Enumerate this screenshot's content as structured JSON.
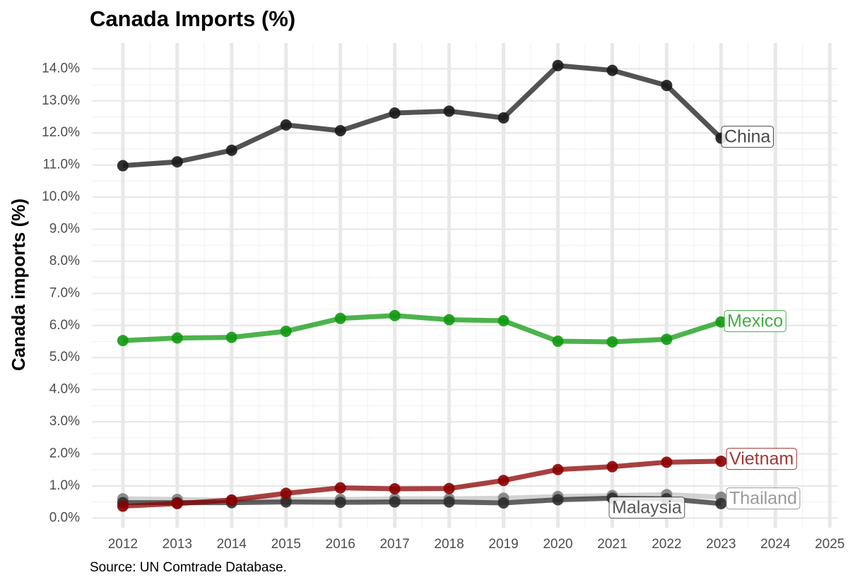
{
  "chart_data": {
    "type": "line",
    "title": "Canada Imports (%)",
    "y_label": "Canada imports (%)",
    "caption": "Source:  UN Comtrade Database.",
    "x": [
      2012,
      2013,
      2014,
      2015,
      2016,
      2017,
      2018,
      2019,
      2020,
      2021,
      2022,
      2023
    ],
    "series": [
      {
        "name": "China",
        "color": "#1a1a1a",
        "values": [
          10.98,
          11.1,
          11.46,
          12.25,
          12.07,
          12.62,
          12.68,
          12.47,
          14.1,
          13.95,
          13.48,
          11.84
        ]
      },
      {
        "name": "Mexico",
        "color": "#119911",
        "values": [
          5.53,
          5.61,
          5.63,
          5.82,
          6.22,
          6.31,
          6.18,
          6.15,
          5.51,
          5.49,
          5.57,
          6.11
        ]
      },
      {
        "name": "Vietnam",
        "color": "#8b0000",
        "values": [
          0.37,
          0.45,
          0.56,
          0.77,
          0.94,
          0.91,
          0.92,
          1.17,
          1.51,
          1.6,
          1.74,
          1.77
        ]
      },
      {
        "name": "Thailand",
        "color": "#808080",
        "values": [
          0.6,
          0.58,
          0.55,
          0.58,
          0.58,
          0.6,
          0.6,
          0.62,
          0.67,
          0.7,
          0.73,
          0.65
        ]
      },
      {
        "name": "Malaysia",
        "color": "#2e2e2e",
        "values": [
          0.48,
          0.48,
          0.48,
          0.5,
          0.49,
          0.5,
          0.5,
          0.47,
          0.57,
          0.62,
          0.6,
          0.45
        ]
      }
    ],
    "xlim": [
      2011.43,
      2025.14
    ],
    "xticks": [
      2012,
      2013,
      2014,
      2015,
      2016,
      2017,
      2018,
      2019,
      2020,
      2021,
      2022,
      2023,
      2024,
      2025
    ],
    "ylim": [
      -0.3,
      14.8
    ],
    "yticks": [
      {
        "value": 0,
        "label": "0.0%"
      },
      {
        "value": 1,
        "label": "1.0%"
      },
      {
        "value": 2,
        "label": "2.0%"
      },
      {
        "value": 3,
        "label": "3.0%"
      },
      {
        "value": 4,
        "label": "4.0%"
      },
      {
        "value": 5,
        "label": "5.0%"
      },
      {
        "value": 6,
        "label": "6.0%"
      },
      {
        "value": 7,
        "label": "7.0%"
      },
      {
        "value": 8,
        "label": "8.0%"
      },
      {
        "value": 9,
        "label": "9.0%"
      },
      {
        "value": 10,
        "label": "10.0%"
      },
      {
        "value": 11,
        "label": "11.0%"
      },
      {
        "value": 12,
        "label": "12.0%"
      },
      {
        "value": 13,
        "label": "13.0%"
      },
      {
        "value": 14,
        "label": "14.0%"
      }
    ],
    "grid": true
  }
}
